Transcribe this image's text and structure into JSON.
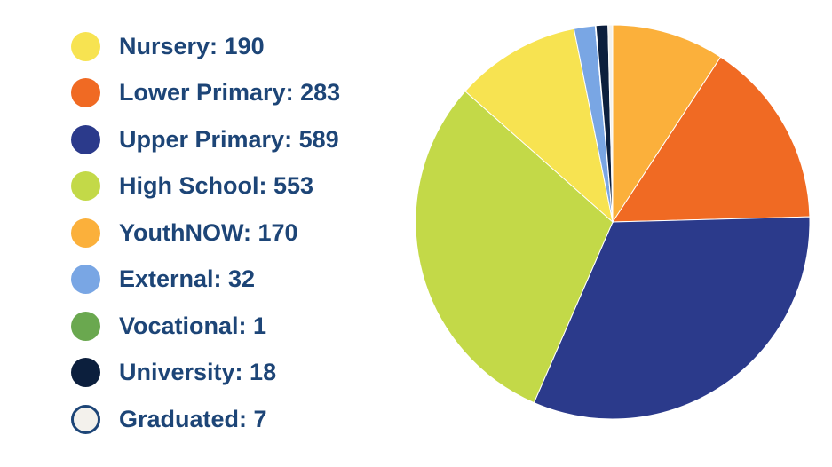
{
  "chart_data": {
    "type": "pie",
    "title": "",
    "start_angle_deg": 0,
    "legend_position": "left",
    "slices": [
      {
        "name": "Nursery",
        "value": 190,
        "color": "#f7e351",
        "border": "",
        "legend_text": "Nursery: 190"
      },
      {
        "name": "Lower Primary",
        "value": 283,
        "color": "#f06a23",
        "border": "",
        "legend_text": "Lower Primary: 283"
      },
      {
        "name": "Upper Primary",
        "value": 589,
        "color": "#2b3a8b",
        "border": "",
        "legend_text": "Upper Primary: 589"
      },
      {
        "name": "High School",
        "value": 553,
        "color": "#c3d948",
        "border": "",
        "legend_text": "High School: 553"
      },
      {
        "name": "YouthNOW",
        "value": 170,
        "color": "#fbb03b",
        "border": "",
        "legend_text": "YouthNOW: 170"
      },
      {
        "name": "External",
        "value": 32,
        "color": "#79a6e4",
        "border": "",
        "legend_text": "External: 32"
      },
      {
        "name": "Vocational",
        "value": 1,
        "color": "#6aa84f",
        "border": "",
        "legend_text": "Vocational: 1"
      },
      {
        "name": "University",
        "value": 18,
        "color": "#0c1f3d",
        "border": "",
        "legend_text": "University: 18"
      },
      {
        "name": "Graduated",
        "value": 7,
        "color": "#f3f1ec",
        "border": "#1d4577",
        "legend_text": "Graduated: 7"
      }
    ],
    "slice_order_clockwise_from_top": [
      "YouthNOW",
      "Lower Primary",
      "Upper Primary",
      "High School",
      "Nursery",
      "External",
      "Vocational",
      "University",
      "Graduated"
    ]
  }
}
